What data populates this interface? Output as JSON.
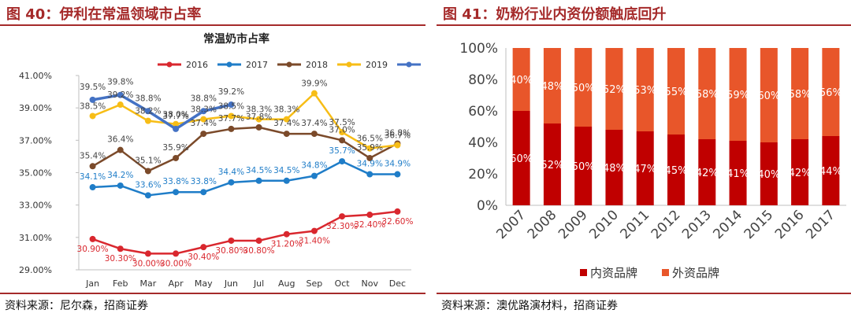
{
  "left": {
    "figure_title": "图 40：伊利在常温领域市占率",
    "source": "资料来源：尼尔森，招商证券"
  },
  "right": {
    "figure_title": "图 41：奶粉行业内资份额触底回升",
    "source": "资料来源：澳优路演材料，招商证券"
  },
  "chart_data": [
    {
      "type": "line",
      "title": "常温奶市占率",
      "categories": [
        "Jan",
        "Feb",
        "Mar",
        "Apr",
        "May",
        "Jun",
        "Jul",
        "Aug",
        "Sep",
        "Oct",
        "Nov",
        "Dec"
      ],
      "ylim": [
        29,
        41
      ],
      "yticks": [
        "29.00%",
        "31.00%",
        "33.00%",
        "35.00%",
        "37.00%",
        "39.00%",
        "41.00%"
      ],
      "grid": false,
      "legend": "top",
      "series": [
        {
          "name": "2016",
          "color": "#d9272e",
          "values": [
            30.9,
            30.3,
            30.0,
            30.0,
            30.4,
            30.8,
            30.8,
            31.2,
            31.4,
            32.3,
            32.4,
            32.6
          ],
          "labels": [
            "30.90%",
            "30.30%",
            "30.00%",
            "30.00%",
            "30.40%",
            "30.80%",
            "30.80%",
            "31.20%",
            "31.40%",
            "32.30%",
            "32.40%",
            "32.60%"
          ]
        },
        {
          "name": "2017",
          "color": "#1f7dc8",
          "values": [
            34.1,
            34.2,
            33.6,
            33.8,
            33.8,
            34.4,
            34.5,
            34.5,
            34.8,
            35.7,
            34.9,
            34.9
          ],
          "labels": [
            "34.1%",
            "34.2%",
            "33.6%",
            "33.8%",
            "33.8%",
            "34.4%",
            "34.5%",
            "34.5%",
            "34.8%",
            "35.7%",
            "34.9%",
            "34.9%"
          ]
        },
        {
          "name": "2018",
          "color": "#7b4a2a",
          "values": [
            35.4,
            36.4,
            35.1,
            35.9,
            37.4,
            37.7,
            37.8,
            37.4,
            37.4,
            37.0,
            35.9,
            36.8
          ],
          "labels": [
            "35.4%",
            "36.4%",
            "35.1%",
            "35.9%",
            "37.4%",
            "37.7%",
            "37.8%",
            "37.4%",
            "37.4%",
            "37.0%",
            "35.9%",
            "36.8%"
          ]
        },
        {
          "name": "2019",
          "color": "#f7bd16",
          "values": [
            38.5,
            39.2,
            38.2,
            38.0,
            38.3,
            38.5,
            38.3,
            38.3,
            39.9,
            37.5,
            36.5,
            36.7
          ],
          "labels": [
            "38.5%",
            "39.2%",
            "38.2%",
            "38.0%",
            "38.3%",
            "38.5%",
            "38.3%",
            "38.3%",
            "39.9%",
            "37.5%",
            "36.5%",
            "36.7%"
          ]
        },
        {
          "name": "",
          "color": "#4472c4",
          "values": [
            39.5,
            39.8,
            38.8,
            37.7,
            38.8,
            39.2,
            null,
            null,
            null,
            null,
            null,
            null
          ],
          "labels": [
            "39.5%",
            "39.8%",
            "38.8%",
            "37.7%",
            "38.8%",
            "39.2%",
            "",
            "",
            "",
            "",
            "",
            ""
          ]
        }
      ]
    },
    {
      "type": "bar",
      "stacked": true,
      "categories": [
        "2007",
        "2008",
        "2009",
        "2010",
        "2011",
        "2012",
        "2013",
        "2014",
        "2015",
        "2016",
        "2017"
      ],
      "ylim": [
        0,
        100
      ],
      "yticks": [
        "0%",
        "20%",
        "40%",
        "60%",
        "80%",
        "100%"
      ],
      "grid": false,
      "legend": "bottom",
      "series": [
        {
          "name": "内资品牌",
          "color": "#c00000",
          "values": [
            60,
            52,
            50,
            48,
            47,
            45,
            42,
            41,
            40,
            42,
            44
          ],
          "labels": [
            "60%",
            "52%",
            "50%",
            "48%",
            "47%",
            "45%",
            "42%",
            "41%",
            "40%",
            "42%",
            "44%"
          ]
        },
        {
          "name": "外资品牌",
          "color": "#e8562a",
          "values": [
            40,
            48,
            50,
            52,
            53,
            55,
            58,
            59,
            60,
            58,
            56
          ],
          "labels": [
            "40%",
            "48%",
            "50%",
            "52%",
            "53%",
            "55%",
            "58%",
            "59%",
            "60%",
            "58%",
            "56%"
          ]
        }
      ]
    }
  ]
}
